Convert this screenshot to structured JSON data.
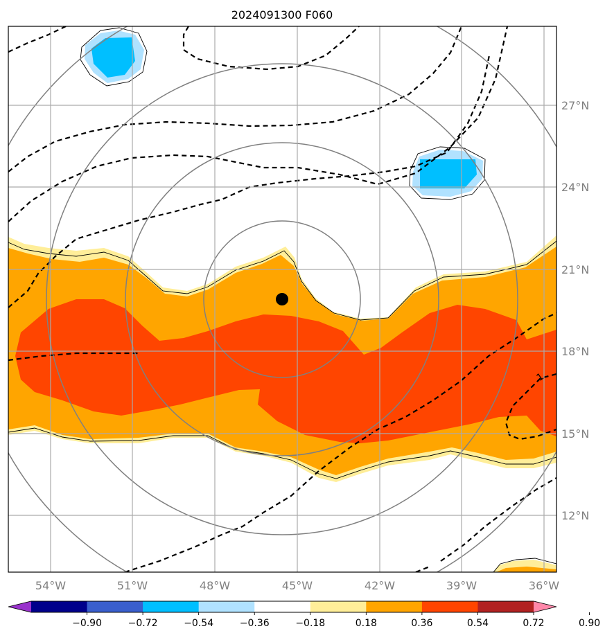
{
  "title": "2024091300 F060",
  "map": {
    "lon_ticks": [
      "54°W",
      "51°W",
      "48°W",
      "45°W",
      "42°W",
      "39°W",
      "36°W"
    ],
    "lat_ticks": [
      "27°N",
      "24°N",
      "21°N",
      "18°N",
      "15°N",
      "12°N"
    ],
    "center_marker": "storm-center",
    "contour_label": "1",
    "colors": {
      "pos_light": "#ffee99",
      "pos_mid": "#ffa500",
      "pos_high": "#ff4500",
      "neg_light": "#b0e0ff",
      "neg_mid": "#00bfff",
      "grid": "#aaaaaa",
      "rings": "#808080"
    }
  },
  "colorbar": {
    "colors": [
      "#9932cc",
      "#00008b",
      "#3a5fcd",
      "#00bfff",
      "#b0e2ff",
      "#ffffff",
      "#ffee99",
      "#ffa500",
      "#ff4500",
      "#b22222",
      "#ff88aa"
    ],
    "labels": [
      "−0.90",
      "−0.72",
      "−0.54",
      "−0.36",
      "−0.18",
      "0.18",
      "0.36",
      "0.54",
      "0.72",
      "0.90"
    ]
  }
}
